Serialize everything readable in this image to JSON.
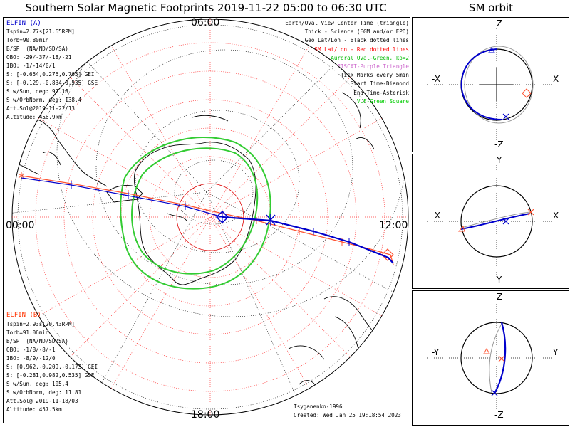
{
  "title": "Southern Solar Magnetic Footprints 2019-11-22 05:00 to 06:30 UTC",
  "orbit_title": "SM orbit",
  "time_labels": {
    "top": "06:00",
    "left": "00:00",
    "right": "12:00",
    "bottom": "18:00"
  },
  "elfin_a": {
    "name": "ELFIN (A)",
    "lines": [
      "Tspin=2.77s[21.65RPM]",
      "Torb=90.80min",
      "B/SP: (NA/ND/SD/SA)",
      "OBO: -29/-37/-18/-21",
      "IBO: -1/-14/0/1",
      "S: [-0.654,0.276,0.705] GEI",
      "S: [-0.129,-0.834,0.535] GSE",
      "S w/Sun, deg: 97.18",
      "S w/OrbNorm, deg: 138.4",
      "Att.Sol@2019-11-22/13",
      "Altitude: 456.9km"
    ]
  },
  "elfin_b": {
    "name": "ELFIN (B)",
    "lines": [
      "Tspin=2.93s[20.43RPM]",
      "Torb=91.06min",
      "B/SP: (NA/ND/SD/SA)",
      "OBO: -1/8/-8/-1",
      "IBO: -8/9/-12/0",
      "S: [0.962,-0.209,-0.173] GEI",
      "S: [-0.281,0.982,0.535] GSE",
      "S w/Sun, deg: 105.4",
      "S w/OrbNorm, deg: 11.81",
      "Att.Sol@ 2019-11-18/03",
      "Altitude: 457.5km"
    ]
  },
  "legend": [
    {
      "text": "Earth/Oval View Center Time (triangle)",
      "color": "#000000"
    },
    {
      "text": "Thick - Science (FGM and/or EPD)",
      "color": "#000000"
    },
    {
      "text": "Geo Lat/Lon - Black dotted lines",
      "color": "#000000"
    },
    {
      "text": "SM Lat/Lon - Red dotted lines",
      "color": "#ff0000"
    },
    {
      "text": "Auroral Oval-Green, kp=2",
      "color": "#00bb00"
    },
    {
      "text": "EISCAT-Purple Triangle",
      "color": "#cc66cc"
    },
    {
      "text": "Tick Marks every 5min",
      "color": "#000000"
    },
    {
      "text": "Start Time-Diamond",
      "color": "#000000"
    },
    {
      "text": "End Time-Asterisk",
      "color": "#000000"
    },
    {
      "text": "VLF-Green Square",
      "color": "#00cc00"
    }
  ],
  "credits": {
    "model": "Tsyganenko-1996",
    "created": "Created: Wed Jan 25 19:18:54 2023"
  },
  "orbit_panels": [
    {
      "top": "Z",
      "bottom": "-Z",
      "left": "-X",
      "right": "X"
    },
    {
      "top": "Y",
      "bottom": "-Y",
      "left": "-X",
      "right": "X"
    },
    {
      "top": "Z",
      "bottom": "-Z",
      "left": "-Y",
      "right": "Y"
    }
  ],
  "colors": {
    "elfin_a": "#0000cc",
    "elfin_b": "#ff5533",
    "oval": "#33cc33",
    "grid_sm": "#ff3333"
  }
}
